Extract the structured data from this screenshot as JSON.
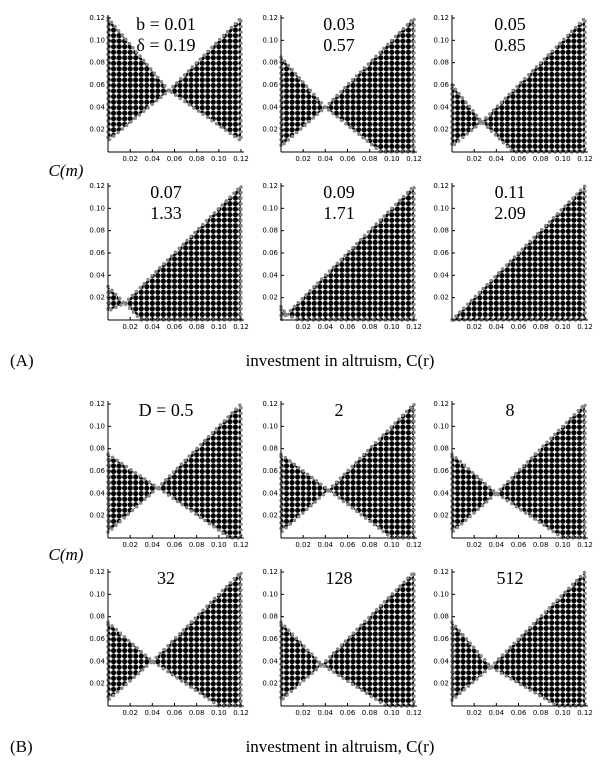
{
  "axes": {
    "xlim": [
      0,
      0.12
    ],
    "ylim": [
      0,
      0.12
    ],
    "xticks": [
      0.02,
      0.04,
      0.06,
      0.08,
      {
        "value": 0.1,
        "label": "0.10"
      },
      0.12
    ],
    "yticks": [
      0.02,
      0.04,
      0.06,
      0.08,
      {
        "value": 0.1,
        "label": "0.10"
      },
      0.12
    ]
  },
  "parts": [
    {
      "label": "(A)",
      "y_label": "C(m)",
      "x_label": "investment in altruism, C(r)",
      "panels": [
        {
          "lines": [
            "b = 0.01",
            "δ = 0.19"
          ],
          "regions": [
            [
              [
                0,
                0.12
              ],
              [
                0.055,
                0.055
              ],
              [
                0,
                0.01
              ]
            ],
            [
              [
                0.055,
                0.055
              ],
              [
                0.12,
                0.12
              ],
              [
                0.12,
                0.01
              ]
            ]
          ]
        },
        {
          "lines": [
            "0.03",
            "0.57"
          ],
          "regions": [
            [
              [
                0,
                0.085
              ],
              [
                0.04,
                0.04
              ],
              [
                0,
                0.005
              ]
            ],
            [
              [
                0.04,
                0.04
              ],
              [
                0.12,
                0.12
              ],
              [
                0.12,
                0
              ],
              [
                0.09,
                0
              ]
            ]
          ]
        },
        {
          "lines": [
            "0.05",
            "0.85"
          ],
          "regions": [
            [
              [
                0,
                0.06
              ],
              [
                0.027,
                0.027
              ],
              [
                0,
                0.005
              ]
            ],
            [
              [
                0.027,
                0.027
              ],
              [
                0.12,
                0.12
              ],
              [
                0.12,
                0
              ],
              [
                0.055,
                0
              ]
            ]
          ]
        },
        {
          "lines": [
            "0.07",
            "1.33"
          ],
          "regions": [
            [
              [
                0,
                0.03
              ],
              [
                0.015,
                0.015
              ],
              [
                0,
                0.008
              ]
            ],
            [
              [
                0.015,
                0.015
              ],
              [
                0.12,
                0.12
              ],
              [
                0.12,
                0
              ],
              [
                0.03,
                0
              ]
            ]
          ]
        },
        {
          "lines": [
            "0.09",
            "1.71"
          ],
          "regions": [
            [
              [
                0,
                0.012
              ],
              [
                0.005,
                0.005
              ],
              [
                0,
                0
              ]
            ],
            [
              [
                0.005,
                0.005
              ],
              [
                0.12,
                0.12
              ],
              [
                0.12,
                0
              ],
              [
                0.015,
                0
              ]
            ]
          ]
        },
        {
          "lines": [
            "0.11",
            "2.09"
          ],
          "regions": [
            [
              [
                0,
                0
              ],
              [
                0.12,
                0.12
              ],
              [
                0.12,
                0
              ]
            ]
          ]
        }
      ]
    },
    {
      "label": "(B)",
      "y_label": "C(m)",
      "x_label": "investment in altruism, C(r)",
      "panels": [
        {
          "lines": [
            "D = 0.5"
          ],
          "regions": [
            [
              [
                0,
                0.075
              ],
              [
                0.045,
                0.045
              ],
              [
                0,
                0.005
              ]
            ],
            [
              [
                0.045,
                0.045
              ],
              [
                0.12,
                0.12
              ],
              [
                0.12,
                0
              ],
              [
                0.11,
                0
              ]
            ]
          ]
        },
        {
          "lines": [
            "2"
          ],
          "regions": [
            [
              [
                0,
                0.075
              ],
              [
                0.043,
                0.043
              ],
              [
                0,
                0.005
              ]
            ],
            [
              [
                0.043,
                0.043
              ],
              [
                0.12,
                0.12
              ],
              [
                0.12,
                0
              ],
              [
                0.1,
                0
              ]
            ]
          ]
        },
        {
          "lines": [
            "8"
          ],
          "regions": [
            [
              [
                0,
                0.075
              ],
              [
                0.04,
                0.04
              ],
              [
                0,
                0.005
              ]
            ],
            [
              [
                0.04,
                0.04
              ],
              [
                0.12,
                0.12
              ],
              [
                0.12,
                0
              ],
              [
                0.1,
                0
              ]
            ]
          ]
        },
        {
          "lines": [
            "32"
          ],
          "regions": [
            [
              [
                0,
                0.075
              ],
              [
                0.04,
                0.04
              ],
              [
                0,
                0.005
              ]
            ],
            [
              [
                0.04,
                0.04
              ],
              [
                0.12,
                0.12
              ],
              [
                0.12,
                0
              ],
              [
                0.1,
                0
              ]
            ]
          ]
        },
        {
          "lines": [
            "128"
          ],
          "regions": [
            [
              [
                0,
                0.075
              ],
              [
                0.037,
                0.037
              ],
              [
                0,
                0.005
              ]
            ],
            [
              [
                0.037,
                0.037
              ],
              [
                0.12,
                0.12
              ],
              [
                0.12,
                0
              ],
              [
                0.095,
                0
              ]
            ]
          ]
        },
        {
          "lines": [
            "512"
          ],
          "regions": [
            [
              [
                0,
                0.075
              ],
              [
                0.035,
                0.035
              ],
              [
                0,
                0.005
              ]
            ],
            [
              [
                0.035,
                0.035
              ],
              [
                0.12,
                0.12
              ],
              [
                0.12,
                0
              ],
              [
                0.095,
                0
              ]
            ]
          ]
        }
      ]
    }
  ]
}
